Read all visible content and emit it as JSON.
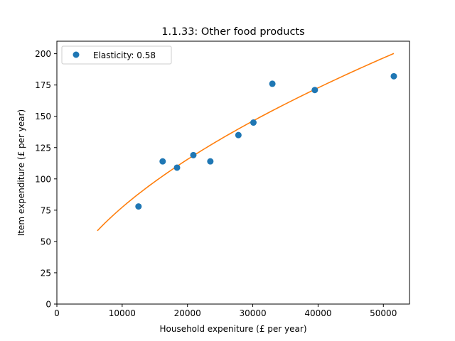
{
  "chart_data": {
    "type": "scatter",
    "title": "1.1.33: Other food products",
    "xlabel": "Household expeniture (£ per year)",
    "ylabel": "Item expenditure (£ per year)",
    "xlim": [
      0,
      54000
    ],
    "ylim": [
      0,
      210
    ],
    "xticks": [
      0,
      10000,
      20000,
      30000,
      40000,
      50000
    ],
    "yticks": [
      0,
      25,
      50,
      75,
      100,
      125,
      150,
      175,
      200
    ],
    "grid": false,
    "legend_position": "upper-left",
    "series": [
      {
        "name": "Elasticity: 0.58",
        "kind": "points",
        "color": "#1f77b4",
        "x": [
          12500,
          16200,
          18400,
          20900,
          23500,
          27800,
          30100,
          33000,
          39500,
          51600
        ],
        "y": [
          78,
          114,
          109,
          119,
          114,
          135,
          145,
          176,
          171,
          182
        ]
      },
      {
        "kind": "fit_line",
        "color": "#ff7f0e",
        "elasticity": 0.58,
        "x_range": [
          6200,
          51600
        ],
        "scale": 0.37
      }
    ]
  }
}
